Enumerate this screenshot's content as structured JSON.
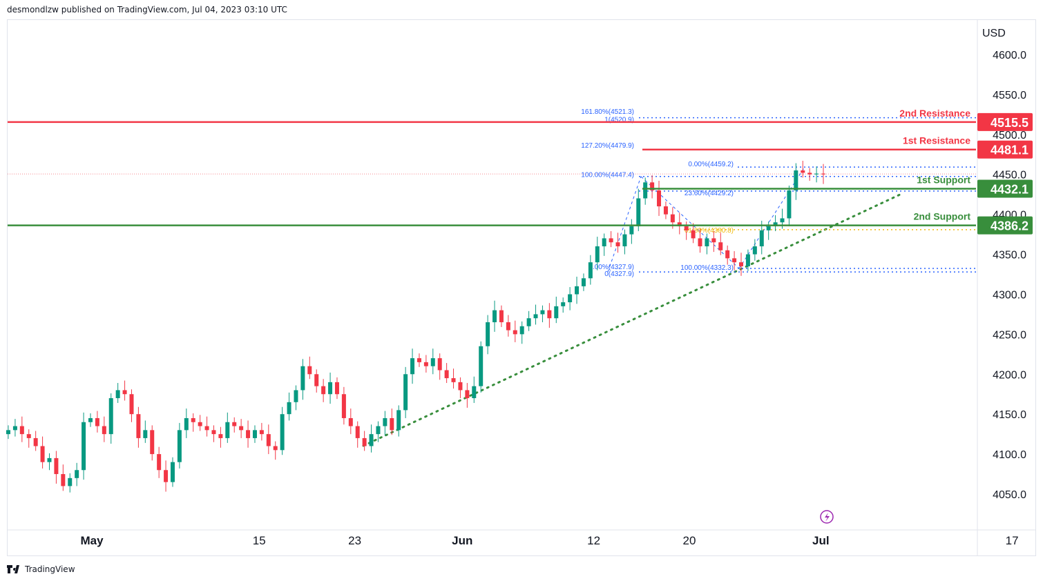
{
  "header": {
    "published": "desmondlzw published on TradingView.com, Jul 04, 2023 03:10 UTC"
  },
  "footer": {
    "brand": "TradingView"
  },
  "chart_data": {
    "type": "candlestick",
    "currency": "USD",
    "y_ticks": [
      "4600.0",
      "4550.0",
      "4500.0",
      "4450.0",
      "4400.0",
      "4350.0",
      "4300.0",
      "4250.0",
      "4200.0",
      "4150.0",
      "4100.0",
      "4050.0"
    ],
    "y_tick_values": [
      4600,
      4550,
      4500,
      4450,
      4400,
      4350,
      4300,
      4250,
      4200,
      4150,
      4100,
      4050
    ],
    "ylim": [
      4000,
      4650
    ],
    "x_ticks": [
      {
        "label": "May",
        "bold": true,
        "day": 0
      },
      {
        "label": "15",
        "bold": false,
        "day": 14
      },
      {
        "label": "23",
        "bold": false,
        "day": 22
      },
      {
        "label": "Jun",
        "bold": true,
        "day": 31
      },
      {
        "label": "12",
        "bold": false,
        "day": 42
      },
      {
        "label": "20",
        "bold": false,
        "day": 50
      },
      {
        "label": "Jul",
        "bold": true,
        "day": 61
      },
      {
        "label": "17",
        "bold": false,
        "day": 77
      }
    ],
    "levels": [
      {
        "name": "2nd Resistance",
        "label": "4515.5",
        "value": 4515.5,
        "color": "#f23645",
        "full": true
      },
      {
        "name": "1st Resistance",
        "label": "4481.1",
        "value": 4481.1,
        "color": "#f23645",
        "full": false
      },
      {
        "name": "1st Support",
        "label": "4432.1",
        "value": 4432.1,
        "color": "#388e3c",
        "full": false
      },
      {
        "name": "2nd Support",
        "label": "4386.2",
        "value": 4386.2,
        "color": "#388e3c",
        "full": true
      }
    ],
    "fib_labels": [
      {
        "text": "161.80%(4521.3)",
        "value": 4521.3
      },
      {
        "text": "1(4520.9)",
        "value": 4520.9
      },
      {
        "text": "127.20%(4479.9)",
        "value": 4479.9
      },
      {
        "text": "100.00%(4447.4)",
        "value": 4447.4
      },
      {
        "text": "0.00%(4459.2)",
        "value": 4459.2
      },
      {
        "text": "23.60%(4429.2)",
        "value": 4429.2
      },
      {
        "text": "61.80%(4380.8)",
        "value": 4380.8
      },
      {
        "text": "0.00%(4327.9)",
        "value": 4327.9
      },
      {
        "text": "0(4327.9)",
        "value": 4327.9
      },
      {
        "text": "100.00%(4332.3)",
        "value": 4332.3
      }
    ],
    "last_price": 4450.5,
    "closes": [
      4130,
      4135,
      4125,
      4120,
      4110,
      4090,
      4095,
      4075,
      4060,
      4070,
      4080,
      4140,
      4145,
      4135,
      4125,
      4170,
      4180,
      4175,
      4150,
      4120,
      4130,
      4100,
      4080,
      4065,
      4090,
      4130,
      4145,
      4140,
      4135,
      4130,
      4125,
      4120,
      4140,
      4135,
      4130,
      4120,
      4130,
      4125,
      4110,
      4105,
      4150,
      4165,
      4180,
      4210,
      4200,
      4185,
      4175,
      4190,
      4175,
      4145,
      4135,
      4120,
      4110,
      4125,
      4135,
      4145,
      4130,
      4155,
      4200,
      4220,
      4215,
      4210,
      4220,
      4205,
      4195,
      4190,
      4180,
      4170,
      4185,
      4235,
      4265,
      4280,
      4265,
      4255,
      4250,
      4260,
      4270,
      4275,
      4280,
      4270,
      4285,
      4290,
      4300,
      4310,
      4320,
      4340,
      4360,
      4370,
      4365,
      4360,
      4375,
      4385,
      4420,
      4440,
      4430,
      4410,
      4400,
      4390,
      4385,
      4380,
      4370,
      4360,
      4370,
      4365,
      4355,
      4345,
      4340,
      4335,
      4350,
      4360,
      4380,
      4385,
      4390,
      4395,
      4430,
      4455,
      4452,
      4450,
      4451,
      4450
    ]
  }
}
